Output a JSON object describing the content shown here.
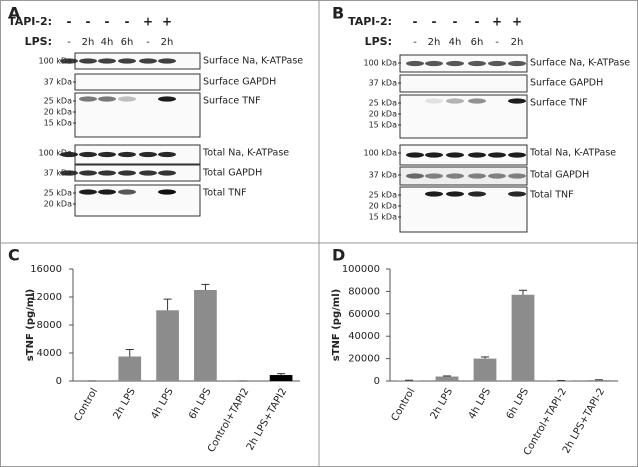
{
  "blots": [
    {
      "panel": "A",
      "tapi_label": "TAPI-2:",
      "lps_label": "LPS:",
      "tapi": [
        "-",
        "-",
        "-",
        "-",
        "+",
        "+"
      ],
      "lps": [
        "-",
        "2h",
        "4h",
        "6h",
        "-",
        "2h"
      ],
      "strips": [
        {
          "name": "Surface Na, K-ATPase",
          "markers": [
            "100 kDa"
          ]
        },
        {
          "name": "Surface GAPDH",
          "markers": [
            "37 kDa"
          ]
        },
        {
          "name": "Surface TNF",
          "markers": [
            "25 kDa",
            "20 kDa",
            "15 kDa"
          ]
        },
        {
          "name": "Total Na, K-ATPase",
          "markers": [
            "100 kDa"
          ]
        },
        {
          "name": "Total GAPDH",
          "markers": [
            "37 kDa"
          ]
        },
        {
          "name": "Total TNF",
          "markers": [
            "25 kDa",
            "20 kDa"
          ]
        }
      ]
    },
    {
      "panel": "B",
      "tapi_label": "TAPI-2:",
      "lps_label": "LPS:",
      "tapi": [
        "-",
        "-",
        "-",
        "-",
        "+",
        "+"
      ],
      "lps": [
        "-",
        "2h",
        "4h",
        "6h",
        "-",
        "2h"
      ],
      "strips": [
        {
          "name": "Surface Na, K-ATPase",
          "markers": [
            "100 kDa"
          ]
        },
        {
          "name": "Surface GAPDH",
          "markers": [
            "37 kDa"
          ]
        },
        {
          "name": "Surface TNF",
          "markers": [
            "25 kDa",
            "20 kDa",
            "15 kDa"
          ]
        },
        {
          "name": "Total Na, K-ATPase",
          "markers": [
            "100 kDa"
          ]
        },
        {
          "name": "Total GAPDH",
          "markers": [
            "37 kDa"
          ]
        },
        {
          "name": "Total TNF",
          "markers": [
            "25 kDa",
            "20 kDa",
            "15 kDa"
          ]
        }
      ]
    }
  ],
  "chart_data": [
    {
      "type": "bar",
      "panel": "C",
      "y_label": "sTNF (pg/ml)",
      "categories": [
        "Control",
        "2h LPS",
        "4h LPS",
        "6h LPS",
        "Control+TAPI2",
        "2h LPS+TAPI2"
      ],
      "values": [
        0,
        3500,
        10100,
        13000,
        0,
        850
      ],
      "errors": [
        0,
        1000,
        1600,
        800,
        0,
        200
      ],
      "colors": [
        "#8c8c8c",
        "#8c8c8c",
        "#8c8c8c",
        "#8c8c8c",
        "#8c8c8c",
        "#000000"
      ],
      "ylim": [
        0,
        16000
      ],
      "yticks": [
        0,
        4000,
        8000,
        12000,
        16000
      ]
    },
    {
      "type": "bar",
      "panel": "D",
      "y_label": "sTNF (pg/ml)",
      "categories": [
        "Control",
        "2h LPS",
        "4h LPS",
        "6h LPS",
        "Control+TAPI-2",
        "2h LPS+TAPI-2"
      ],
      "values": [
        500,
        4000,
        20000,
        77000,
        300,
        800
      ],
      "errors": [
        200,
        500,
        1500,
        4000,
        100,
        300
      ],
      "colors": [
        "#8c8c8c",
        "#8c8c8c",
        "#8c8c8c",
        "#8c8c8c",
        "#8c8c8c",
        "#8c8c8c"
      ],
      "ylim": [
        0,
        100000
      ],
      "yticks": [
        0,
        20000,
        40000,
        60000,
        80000,
        100000
      ]
    }
  ]
}
